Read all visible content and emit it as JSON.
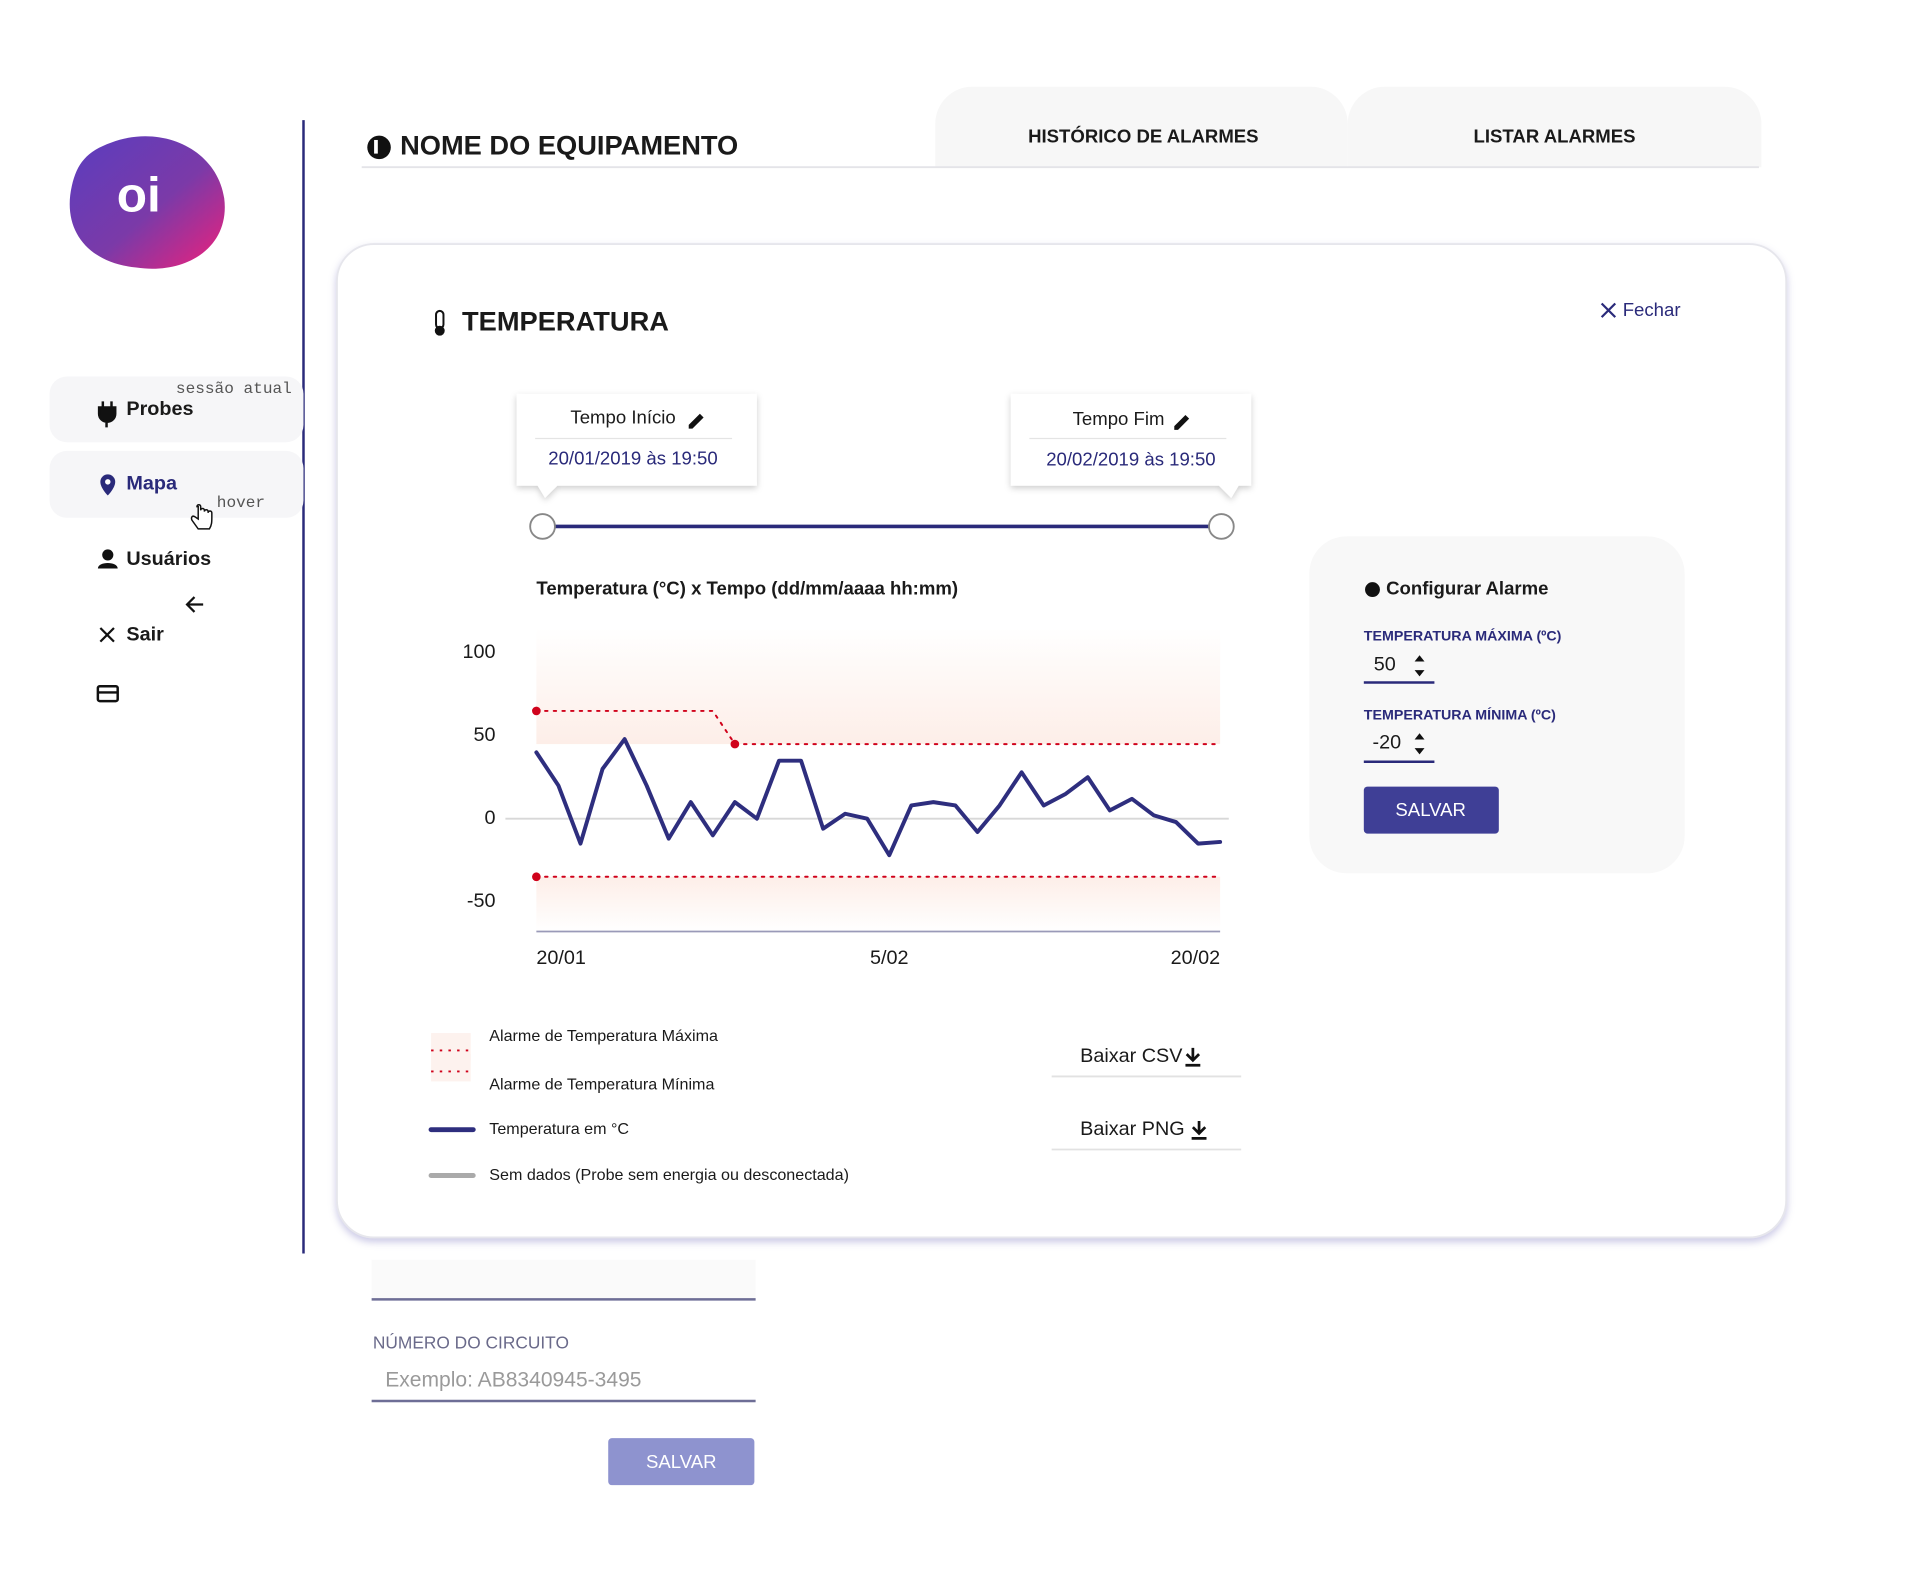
{
  "sidebar": {
    "logo": "oi",
    "session_note": "sessão atual",
    "hover_note": "hover",
    "items": [
      "Probes",
      "Mapa",
      "Usuários",
      "Sair"
    ]
  },
  "header": {
    "title": "NOME DO EQUIPAMENTO",
    "tabs": [
      "HISTÓRICO DE ALARMES",
      "LISTAR ALARMES"
    ]
  },
  "card": {
    "title": "TEMPERATURA",
    "close": "Fechar",
    "start": {
      "label": "Tempo Início",
      "value": "20/01/2019 às 19:50"
    },
    "end": {
      "label": "Tempo Fim",
      "value": "20/02/2019 às 19:50"
    }
  },
  "chart_data": {
    "type": "line",
    "title": "Temperatura (°C) x Tempo (dd/mm/aaaa hh:mm)",
    "xlim": [
      0,
      31
    ],
    "xticks": [
      {
        "value": 0,
        "label": "20/01"
      },
      {
        "value": 16,
        "label": "5/02"
      },
      {
        "value": 31,
        "label": "20/02"
      }
    ],
    "ylim": [
      -68,
      115
    ],
    "yticks": [
      100,
      50,
      0,
      -50
    ],
    "grid": false,
    "series": [
      {
        "name": "Alarme de Temperatura Máxima",
        "color": "#d0021b",
        "line_style": "dotted",
        "values": [
          65,
          65,
          65,
          65,
          65,
          65,
          65,
          65,
          65,
          45,
          45,
          45,
          45,
          45,
          45,
          45,
          45,
          45,
          45,
          45,
          45,
          45,
          45,
          45,
          45,
          45,
          45,
          45,
          45,
          45,
          45,
          45
        ]
      },
      {
        "name": "Alarme de Temperatura Mínima",
        "color": "#d0021b",
        "line_style": "dotted",
        "values": [
          -35,
          -35,
          -35,
          -35,
          -35,
          -35,
          -35,
          -35,
          -35,
          -35,
          -35,
          -35,
          -35,
          -35,
          -35,
          -35,
          -35,
          -35,
          -35,
          -35,
          -35,
          -35,
          -35,
          -35,
          -35,
          -35,
          -35,
          -35,
          -35,
          -35,
          -35,
          -35
        ]
      },
      {
        "name": "Temperatura em °C",
        "color": "#2e2e7e",
        "line_style": "solid",
        "values": [
          40,
          20,
          -15,
          30,
          48,
          20,
          -12,
          10,
          -10,
          10,
          0,
          35,
          35,
          -6,
          3,
          0,
          -22,
          8,
          10,
          8,
          -8,
          8,
          28,
          8,
          15,
          25,
          5,
          12,
          2,
          -2,
          -15,
          -14
        ]
      },
      {
        "name": "Sem dados (Probe sem energia ou desconectada)",
        "color": "#aaaaaa",
        "line_style": "solid",
        "values": [
          null,
          null,
          null,
          null,
          null,
          null,
          null,
          null,
          null,
          null,
          null,
          null,
          null,
          null,
          null,
          null,
          null,
          null,
          null,
          null,
          null,
          null,
          null,
          null,
          null,
          null,
          null,
          null,
          null,
          null,
          null,
          null
        ]
      }
    ]
  },
  "alarm": {
    "title": "Configurar Alarme",
    "max_label": "TEMPERATURA MÁXIMA (ºC)",
    "max_value": 50,
    "min_label": "TEMPERATURA MÍNIMA (ºC)",
    "min_value": -20,
    "button": "SALVAR"
  },
  "downloads": [
    "Baixar CSV",
    "Baixar PNG"
  ],
  "form": {
    "field_label": "NÚMERO DO CIRCUITO",
    "placeholder": "Exemplo: AB8340945-3495",
    "button": "SALVAR"
  }
}
